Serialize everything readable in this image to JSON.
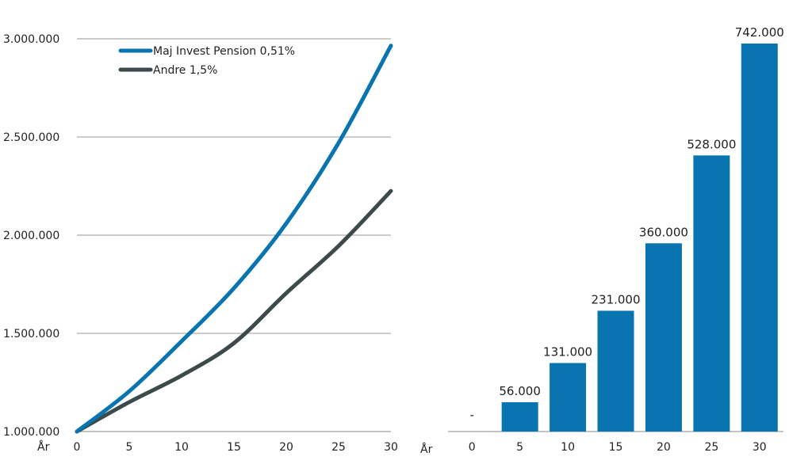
{
  "chart_data": [
    {
      "type": "line",
      "xlabel": "År",
      "ylim": [
        1000000,
        3000000
      ],
      "yticks": [
        1000000,
        1500000,
        2000000,
        2500000,
        3000000
      ],
      "ytick_labels": [
        "1.000.000",
        "1.500.000",
        "2.000.000",
        "2.500.000",
        "3.000.000"
      ],
      "xticks": [
        0,
        5,
        10,
        15,
        20,
        25,
        30
      ],
      "xtick_labels": [
        "0",
        "5",
        "10",
        "15",
        "20",
        "25",
        "30"
      ],
      "grid": true,
      "legend_position": "top-left",
      "series": [
        {
          "name": "Maj Invest Pension 0,51%",
          "color": "#0a74b0",
          "x": [
            0,
            5,
            10,
            15,
            20,
            25,
            30
          ],
          "values": [
            1000000,
            1205000,
            1460000,
            1730000,
            2060000,
            2470000,
            2965000
          ]
        },
        {
          "name": "Andre 1,5%",
          "color": "#3d4a4c",
          "x": [
            0,
            5,
            10,
            15,
            20,
            25,
            30
          ],
          "values": [
            1000000,
            1150000,
            1285000,
            1450000,
            1705000,
            1945000,
            2225000
          ]
        }
      ]
    },
    {
      "type": "bar",
      "xlabel": "År",
      "categories": [
        "0",
        "5",
        "10",
        "15",
        "20",
        "25",
        "30"
      ],
      "values": [
        0,
        56000,
        131000,
        231000,
        360000,
        528000,
        742000
      ],
      "value_labels": [
        "-",
        "56.000",
        "131.000",
        "231.000",
        "360.000",
        "528.000",
        "742.000"
      ],
      "color": "#0a74b0",
      "ylim": [
        0,
        742000
      ]
    }
  ]
}
